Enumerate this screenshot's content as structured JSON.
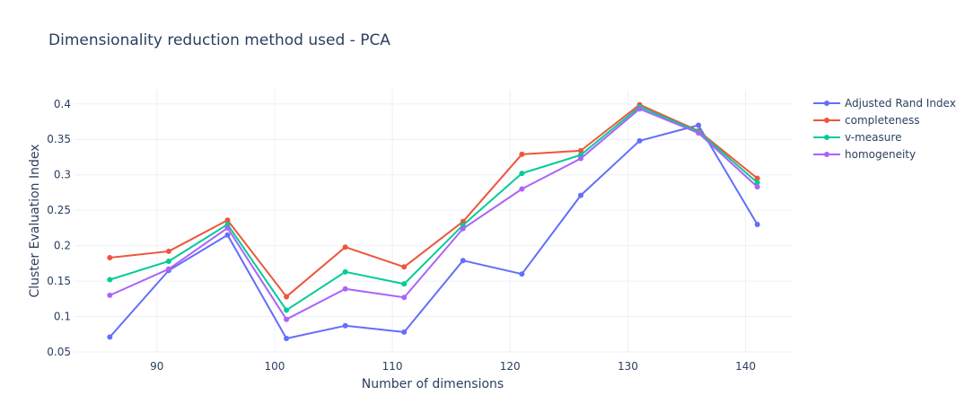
{
  "chart_data": {
    "type": "line",
    "title": "Dimensionality reduction method used - PCA",
    "xlabel": "Number of dimensions",
    "ylabel": "Cluster Evaluation Index",
    "xlim": [
      83,
      144
    ],
    "ylim": [
      0.05,
      0.42
    ],
    "xticks": [
      90,
      100,
      110,
      120,
      130,
      140
    ],
    "yticks": [
      0.05,
      0.1,
      0.15,
      0.2,
      0.25,
      0.3,
      0.35,
      0.4
    ],
    "ytick_labels": [
      "0.05",
      "0.1",
      "0.15",
      "0.2",
      "0.25",
      "0.3",
      "0.35",
      "0.4"
    ],
    "grid": true,
    "legend_position": "top-right",
    "x": [
      86,
      91,
      96,
      101,
      106,
      111,
      116,
      121,
      126,
      131,
      136,
      141
    ],
    "series": [
      {
        "name": "Adjusted Rand Index",
        "color": "#636efa",
        "values": [
          0.071,
          0.165,
          0.215,
          0.069,
          0.087,
          0.078,
          0.179,
          0.16,
          0.271,
          0.348,
          0.37,
          0.23
        ]
      },
      {
        "name": "completeness",
        "color": "#ef553b",
        "values": [
          0.183,
          0.192,
          0.236,
          0.128,
          0.198,
          0.17,
          0.234,
          0.329,
          0.334,
          0.399,
          0.362,
          0.295
        ]
      },
      {
        "name": "v-measure",
        "color": "#00cc96",
        "values": [
          0.152,
          0.178,
          0.23,
          0.109,
          0.163,
          0.146,
          0.229,
          0.302,
          0.328,
          0.396,
          0.361,
          0.289
        ]
      },
      {
        "name": "homogeneity",
        "color": "#ab63fa",
        "values": [
          0.13,
          0.167,
          0.225,
          0.096,
          0.139,
          0.127,
          0.224,
          0.28,
          0.323,
          0.393,
          0.359,
          0.283
        ]
      }
    ]
  }
}
